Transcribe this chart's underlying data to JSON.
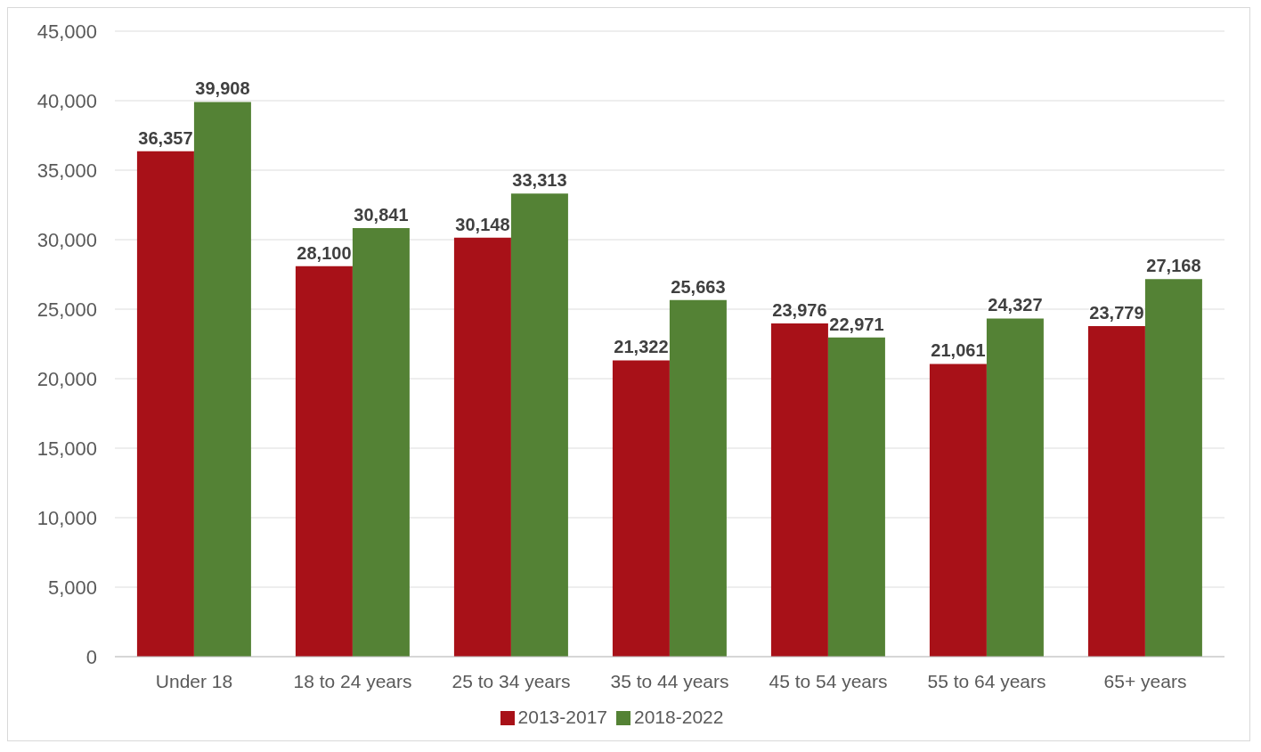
{
  "chart_data": {
    "type": "bar",
    "categories": [
      "Under 18",
      "18 to 24 years",
      "25 to 34 years",
      "35 to 44 years",
      "45 to 54 years",
      "55 to 64 years",
      "65+ years"
    ],
    "series": [
      {
        "name": "2013-2017",
        "color": "#a81118",
        "values": [
          36357,
          28100,
          30148,
          21322,
          23976,
          21061,
          23779
        ],
        "value_labels": [
          "36,357",
          "28,100",
          "30,148",
          "21,322",
          "23,976",
          "21,061",
          "23,779"
        ]
      },
      {
        "name": "2018-2022",
        "color": "#548235",
        "values": [
          39908,
          30841,
          33313,
          25663,
          22971,
          24327,
          27168
        ],
        "value_labels": [
          "39,908",
          "30,841",
          "33,313",
          "25,663",
          "22,971",
          "24,327",
          "27,168"
        ]
      }
    ],
    "ylim": [
      0,
      45000
    ],
    "yticks": [
      {
        "value": 0,
        "label": "0"
      },
      {
        "value": 5000,
        "label": "5,000"
      },
      {
        "value": 10000,
        "label": "10,000"
      },
      {
        "value": 15000,
        "label": "15,000"
      },
      {
        "value": 20000,
        "label": "20,000"
      },
      {
        "value": 25000,
        "label": "25,000"
      },
      {
        "value": 30000,
        "label": "30,000"
      },
      {
        "value": 35000,
        "label": "35,000"
      },
      {
        "value": 40000,
        "label": "40,000"
      },
      {
        "value": 45000,
        "label": "45,000"
      }
    ],
    "grid": "y",
    "legend": "bottom"
  }
}
